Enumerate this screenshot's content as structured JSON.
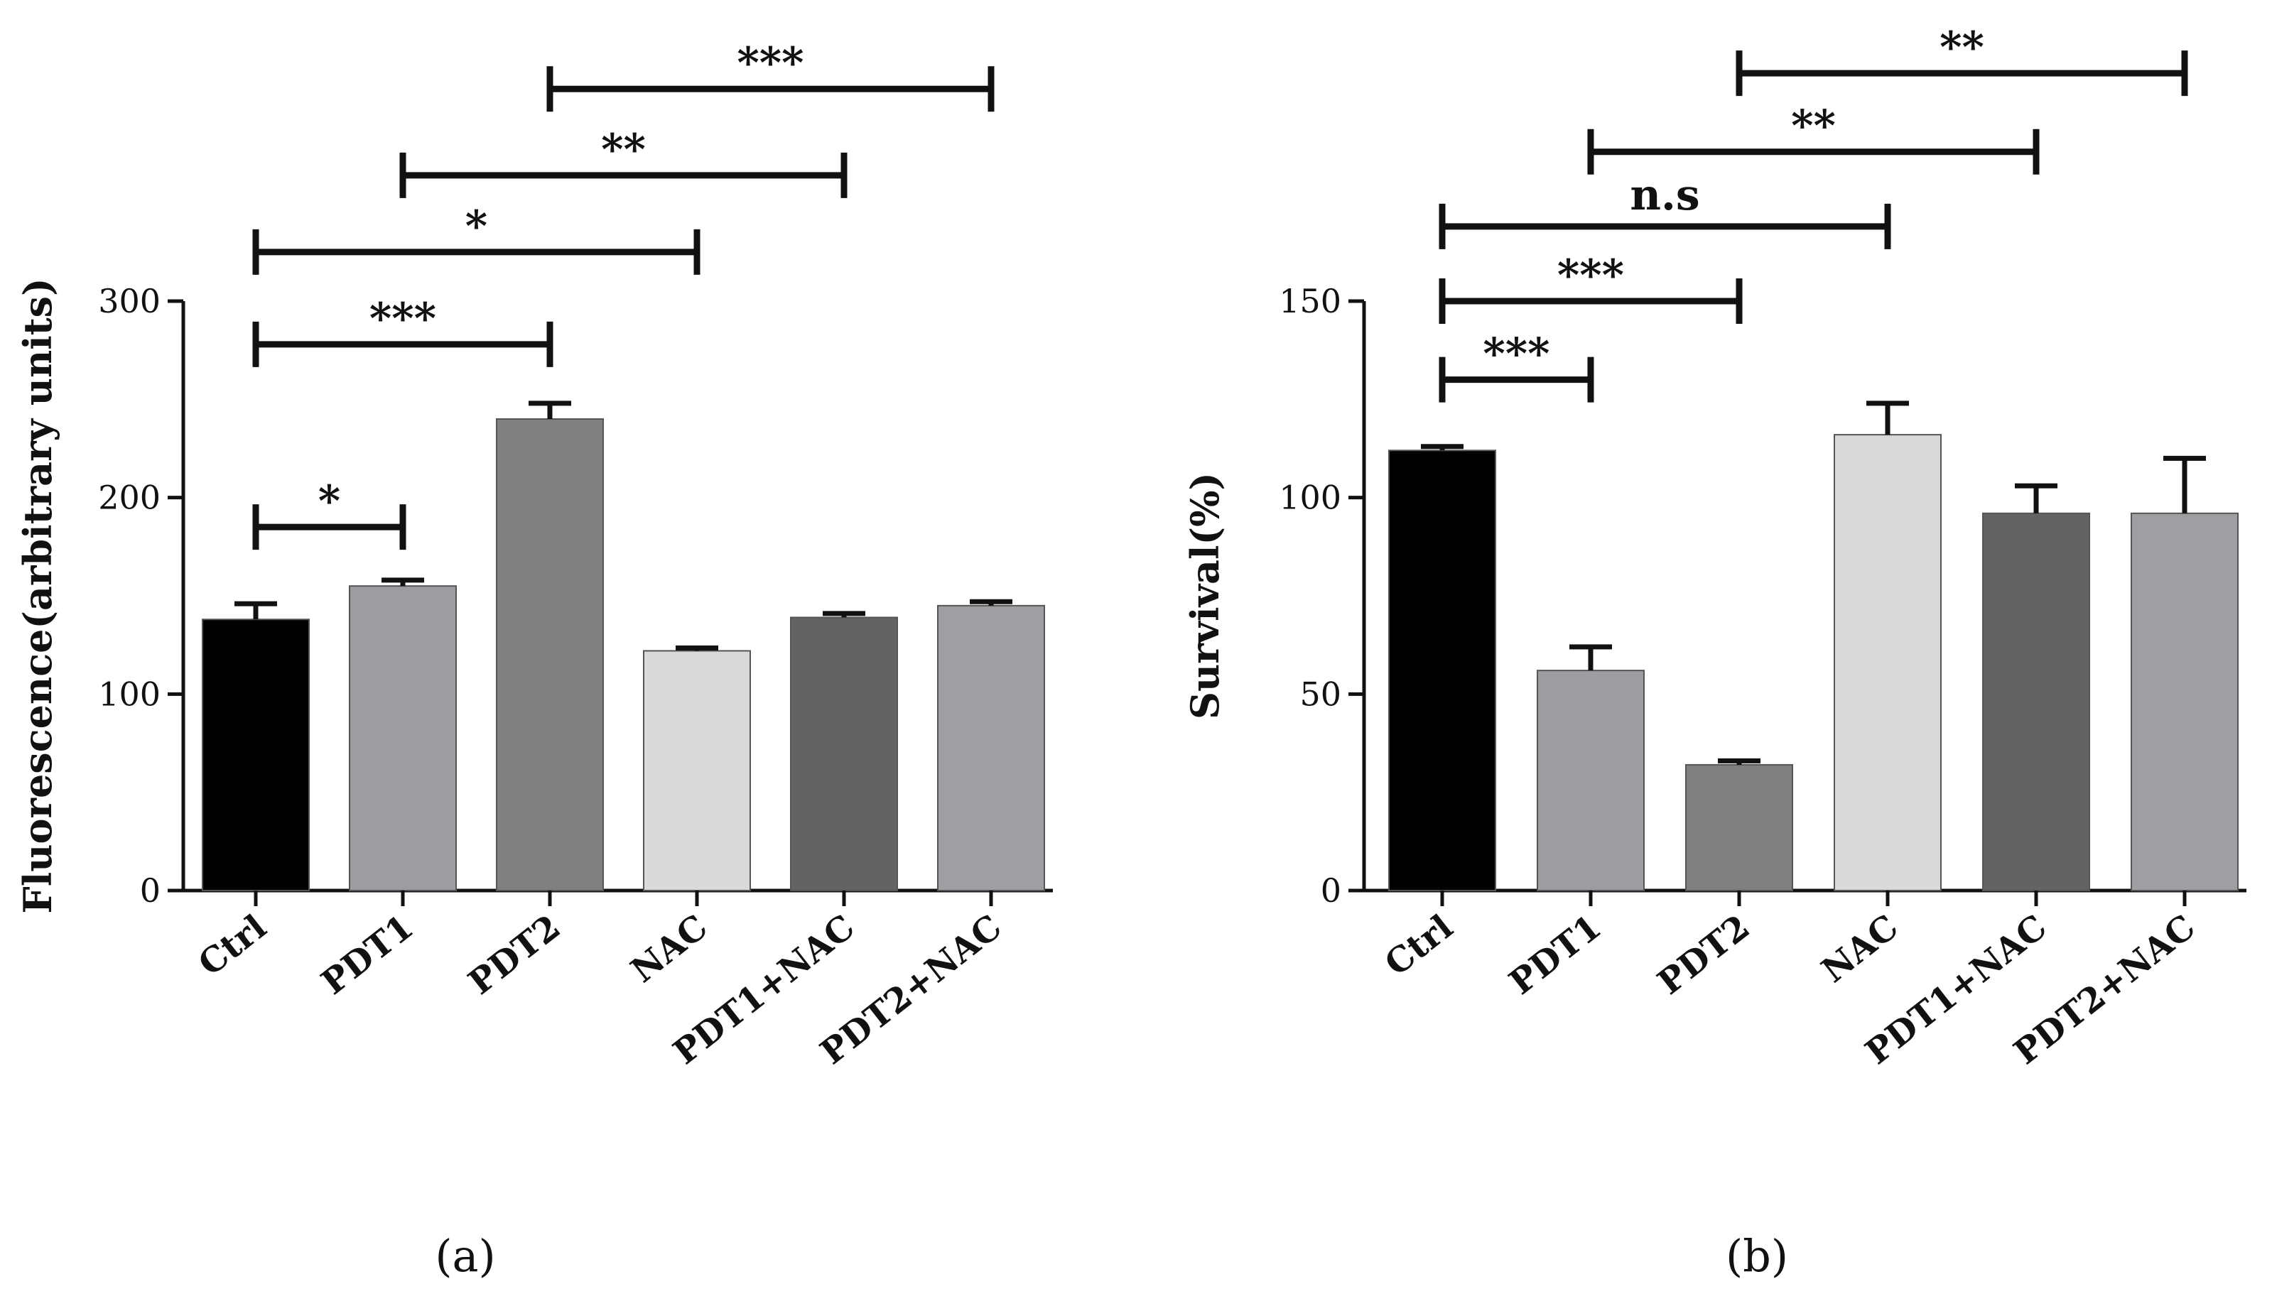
{
  "chart_data": [
    {
      "type": "bar",
      "panel_label": "(a)",
      "ylabel": "Fluorescence(arbitrary units)",
      "xlabel": "",
      "ylim": [
        0,
        300
      ],
      "yticks": [
        0,
        100,
        200,
        300
      ],
      "categories": [
        "Ctrl",
        "PDT1",
        "PDT2",
        "NAC",
        "PDT1+NAC",
        "PDT2+NAC"
      ],
      "values": [
        138,
        155,
        240,
        122,
        139,
        145
      ],
      "errors": [
        8,
        3,
        8,
        1.5,
        2,
        2
      ],
      "colors": [
        "#000000",
        "#9d9ca1",
        "#808080",
        "#d9d9d9",
        "#636363",
        "#9f9fa3"
      ],
      "significance": [
        {
          "from": 0,
          "to": 1,
          "y": 185,
          "label": "*"
        },
        {
          "from": 0,
          "to": 2,
          "y": 278,
          "label": "***"
        },
        {
          "from": 0,
          "to": 3,
          "y": 325,
          "label": "*"
        },
        {
          "from": 1,
          "to": 4,
          "y": 364,
          "label": "**"
        },
        {
          "from": 2,
          "to": 5,
          "y": 408,
          "label": "***"
        }
      ]
    },
    {
      "type": "bar",
      "panel_label": "(b)",
      "ylabel": "Survival(%)",
      "xlabel": "",
      "ylim": [
        0,
        150
      ],
      "yticks": [
        0,
        50,
        100,
        150
      ],
      "categories": [
        "Ctrl",
        "PDT1",
        "PDT2",
        "NAC",
        "PDT1+NAC",
        "PDT2+NAC"
      ],
      "values": [
        112,
        56,
        32,
        116,
        96,
        96
      ],
      "errors": [
        1,
        6,
        1,
        8,
        7,
        14
      ],
      "colors": [
        "#000000",
        "#9d9ca1",
        "#808080",
        "#d9d9d9",
        "#636363",
        "#9f9fa3"
      ],
      "significance": [
        {
          "from": 0,
          "to": 1,
          "y": 130,
          "label": "***"
        },
        {
          "from": 0,
          "to": 2,
          "y": 150,
          "label": "***"
        },
        {
          "from": 0,
          "to": 3,
          "y": 169,
          "label": "n.s"
        },
        {
          "from": 1,
          "to": 4,
          "y": 188,
          "label": "**"
        },
        {
          "from": 2,
          "to": 5,
          "y": 208,
          "label": "**"
        }
      ]
    }
  ]
}
